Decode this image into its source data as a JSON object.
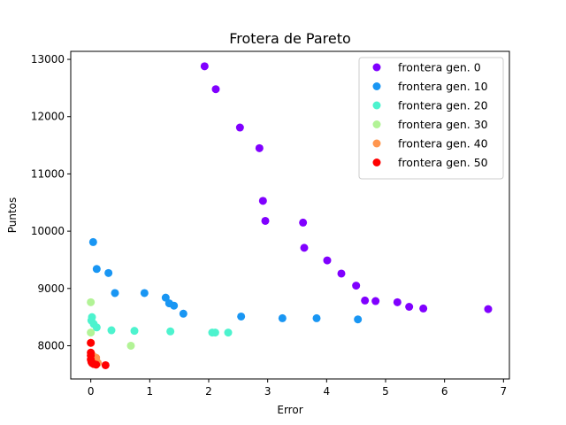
{
  "chart_data": {
    "type": "scatter",
    "title": "Frotera de Pareto",
    "xlabel": "Error",
    "ylabel": "Puntos",
    "xlim": [
      -0.34,
      7.1
    ],
    "ylim": [
      7420,
      13140
    ],
    "xticks": [
      0,
      1,
      2,
      3,
      4,
      5,
      6,
      7
    ],
    "yticks": [
      8000,
      9000,
      10000,
      11000,
      12000,
      13000
    ],
    "grid": false,
    "legend_position": "top-right",
    "series": [
      {
        "name": "frontera gen. 0",
        "color": "#8000ff",
        "points": [
          [
            1.93,
            12880
          ],
          [
            2.12,
            12480
          ],
          [
            2.53,
            11810
          ],
          [
            2.86,
            11450
          ],
          [
            2.92,
            10530
          ],
          [
            2.96,
            10180
          ],
          [
            3.6,
            10150
          ],
          [
            3.62,
            9710
          ],
          [
            4.01,
            9490
          ],
          [
            4.25,
            9260
          ],
          [
            4.5,
            9050
          ],
          [
            4.65,
            8790
          ],
          [
            4.83,
            8780
          ],
          [
            5.2,
            8760
          ],
          [
            5.4,
            8680
          ],
          [
            5.64,
            8650
          ],
          [
            6.74,
            8640
          ]
        ]
      },
      {
        "name": "frontera gen. 10",
        "color": "#1996f3",
        "points": [
          [
            0.04,
            9810
          ],
          [
            0.1,
            9340
          ],
          [
            0.3,
            9270
          ],
          [
            0.41,
            8920
          ],
          [
            0.91,
            8920
          ],
          [
            1.27,
            8840
          ],
          [
            1.33,
            8740
          ],
          [
            1.41,
            8700
          ],
          [
            1.57,
            8560
          ],
          [
            2.55,
            8510
          ],
          [
            3.25,
            8480
          ],
          [
            3.83,
            8480
          ],
          [
            4.53,
            8460
          ]
        ]
      },
      {
        "name": "frontera gen. 20",
        "color": "#4df3ce",
        "points": [
          [
            0.02,
            8500
          ],
          [
            0.05,
            8380
          ],
          [
            0.1,
            8320
          ],
          [
            0.35,
            8270
          ],
          [
            0.74,
            8260
          ],
          [
            1.35,
            8250
          ],
          [
            2.06,
            8230
          ],
          [
            2.11,
            8230
          ],
          [
            2.33,
            8230
          ],
          [
            0.01,
            8440
          ]
        ]
      },
      {
        "name": "frontera gen. 30",
        "color": "#b2f396",
        "points": [
          [
            0.0,
            8760
          ],
          [
            0.0,
            8230
          ],
          [
            0.68,
            8000
          ]
        ]
      },
      {
        "name": "frontera gen. 40",
        "color": "#ff964f",
        "points": [
          [
            0.0,
            8050
          ],
          [
            0.02,
            7840
          ],
          [
            0.05,
            7810
          ],
          [
            0.09,
            7790
          ],
          [
            0.12,
            7700
          ]
        ]
      },
      {
        "name": "frontera gen. 50",
        "color": "#ff0000",
        "points": [
          [
            0.0,
            8050
          ],
          [
            0.0,
            7880
          ],
          [
            0.0,
            7830
          ],
          [
            0.0,
            7760
          ],
          [
            0.01,
            7720
          ],
          [
            0.02,
            7700
          ],
          [
            0.05,
            7680
          ],
          [
            0.09,
            7670
          ],
          [
            0.25,
            7660
          ]
        ]
      }
    ]
  }
}
